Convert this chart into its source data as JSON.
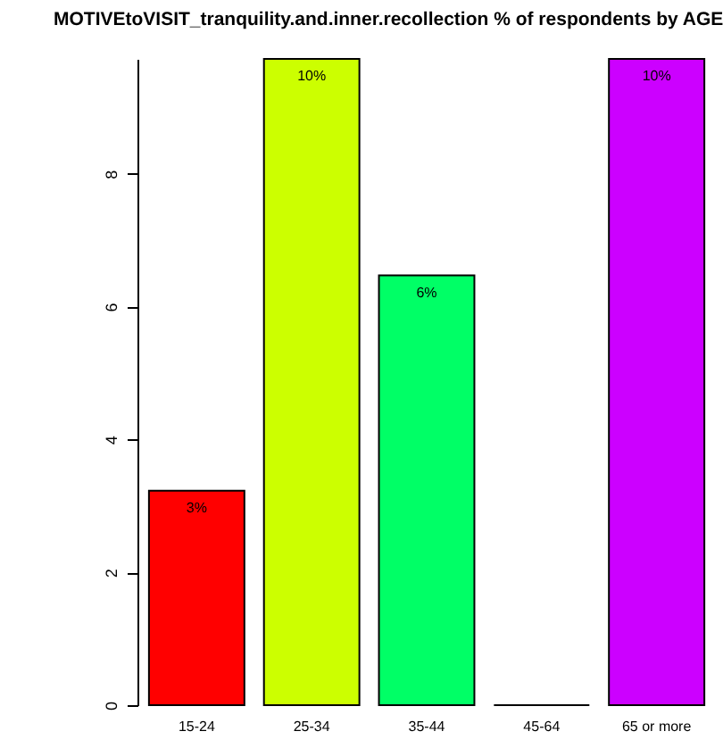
{
  "chart_data": {
    "type": "bar",
    "title": "MOTIVEtoVISIT_tranquility.and.inner.recollection % of respondents by AGE",
    "categories": [
      "15-24",
      "25-34",
      "35-44",
      "45-64",
      "65 or more"
    ],
    "values": [
      3.23,
      9.73,
      6.47,
      0,
      9.73
    ],
    "colors": [
      "#ff0000",
      "#ccff00",
      "#00ff66",
      "#000000",
      "#cc00ff"
    ],
    "value_labels": [
      "3%",
      "10%",
      "6%",
      null,
      "10%"
    ],
    "ylim": [
      0,
      9.73
    ],
    "yticks": [
      0,
      2,
      4,
      6,
      8
    ],
    "grid": false
  }
}
